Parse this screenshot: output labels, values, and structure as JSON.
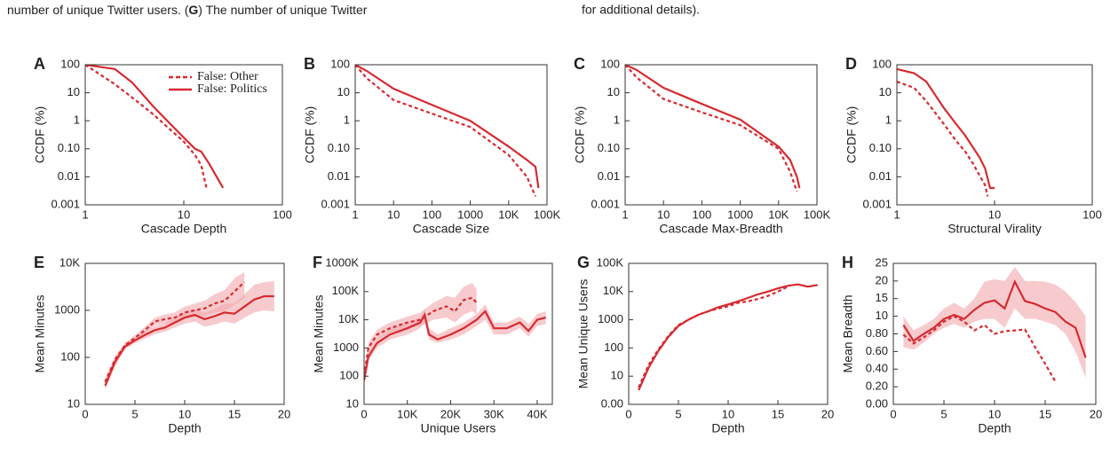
{
  "caption": {
    "left": [
      "number of unique Twitter users. (",
      "G",
      ") The number of unique Twitter"
    ],
    "right": "for additional details)."
  },
  "chart_data": [
    {
      "type": "line",
      "panel": "A",
      "xlabel": "Cascade Depth",
      "ylabel": "CCDF (%)",
      "xscale": "log",
      "yscale": "log",
      "xlim": [
        1,
        100
      ],
      "xticks": [
        1,
        10,
        100
      ],
      "ylim": [
        0.001,
        100
      ],
      "yticks": [
        0.001,
        0.01,
        {
          "value": 0.1,
          "label": "0.10"
        },
        1,
        10,
        100
      ],
      "legend": "upper right",
      "series": [
        {
          "name": "False: Other",
          "color": "#d62a30",
          "linestyle": "dashed",
          "x": [
            1,
            2,
            3,
            5,
            8,
            10,
            13,
            15,
            17
          ],
          "values": [
            100,
            20,
            6.7,
            1.6,
            0.36,
            0.18,
            0.06,
            0.026,
            0.004
          ]
        },
        {
          "name": "False: Politics",
          "color": "#d62a30",
          "linestyle": "solid",
          "x": [
            1,
            2,
            3,
            5,
            10,
            13,
            15,
            18,
            25
          ],
          "values": [
            100,
            70,
            23,
            3,
            0.25,
            0.1,
            0.08,
            0.03,
            0.004
          ]
        }
      ]
    },
    {
      "type": "line",
      "panel": "B",
      "xlabel": "Cascade Size",
      "ylabel": "CCDF (%)",
      "xscale": "log",
      "yscale": "log",
      "xlim": [
        1,
        100000
      ],
      "xticks": [
        1,
        10,
        100,
        1000,
        {
          "value": 10000,
          "label": "10K"
        },
        {
          "value": 100000,
          "label": "100K"
        }
      ],
      "ylim": [
        0.001,
        100
      ],
      "yticks": [
        0.001,
        0.01,
        {
          "value": 0.1,
          "label": "0.10"
        },
        1,
        10,
        100
      ],
      "series": [
        {
          "color": "#d62a30",
          "linestyle": "dashed",
          "x": [
            1,
            2,
            10,
            100,
            1000,
            10000,
            30000,
            50000
          ],
          "values": [
            100,
            33,
            5.5,
            1.8,
            0.6,
            0.06,
            0.01,
            0.002
          ]
        },
        {
          "color": "#d62a30",
          "linestyle": "solid",
          "x": [
            1,
            2,
            10,
            100,
            1000,
            10000,
            30000,
            50000,
            60000
          ],
          "values": [
            100,
            60,
            14,
            3.7,
            1,
            0.12,
            0.04,
            0.023,
            0.004
          ]
        }
      ]
    },
    {
      "type": "line",
      "panel": "C",
      "xlabel": "Cascade Max-Breadth",
      "ylabel": "CCDF (%)",
      "xscale": "log",
      "yscale": "log",
      "xlim": [
        1,
        100000
      ],
      "xticks": [
        1,
        10,
        100,
        1000,
        {
          "value": 10000,
          "label": "10K"
        },
        {
          "value": 100000,
          "label": "100K"
        }
      ],
      "ylim": [
        0.001,
        100
      ],
      "yticks": [
        0.001,
        0.01,
        {
          "value": 0.1,
          "label": "0.10"
        },
        1,
        10,
        100
      ],
      "series": [
        {
          "color": "#d62a30",
          "linestyle": "dashed",
          "x": [
            1,
            2,
            10,
            100,
            1000,
            10000,
            20000,
            30000
          ],
          "values": [
            100,
            35,
            6,
            2,
            0.7,
            0.1,
            0.015,
            0.003
          ]
        },
        {
          "color": "#d62a30",
          "linestyle": "solid",
          "x": [
            1,
            2,
            10,
            100,
            1000,
            10000,
            20000,
            30000,
            35000
          ],
          "values": [
            100,
            65,
            15,
            4,
            1.1,
            0.12,
            0.04,
            0.01,
            0.004
          ]
        }
      ]
    },
    {
      "type": "line",
      "panel": "D",
      "xlabel": "Structural Virality",
      "ylabel": "CCDF (%)",
      "xscale": "log",
      "yscale": "log",
      "xlim": [
        1,
        100
      ],
      "xticks": [
        1,
        10,
        100
      ],
      "ylim": [
        0.001,
        100
      ],
      "yticks": [
        0.001,
        0.01,
        {
          "value": 0.1,
          "label": "0.10"
        },
        1,
        10,
        100
      ],
      "series": [
        {
          "color": "#d62a30",
          "linestyle": "dashed",
          "x": [
            1,
            1.5,
            2,
            3,
            4,
            5,
            6,
            8,
            8.5
          ],
          "values": [
            25,
            15,
            5,
            0.8,
            0.2,
            0.08,
            0.03,
            0.005,
            0.002
          ]
        },
        {
          "color": "#d62a30",
          "linestyle": "solid",
          "x": [
            1,
            1.5,
            2,
            3,
            4,
            5,
            7,
            8,
            9,
            10
          ],
          "values": [
            70,
            50,
            25,
            3,
            0.8,
            0.3,
            0.05,
            0.02,
            0.004,
            0.004
          ]
        }
      ]
    },
    {
      "type": "line",
      "panel": "E",
      "xlabel": "Depth",
      "ylabel": "Mean Minutes",
      "xscale": "linear",
      "yscale": "log",
      "xlim": [
        0,
        20
      ],
      "xticks": [
        0,
        5,
        10,
        15,
        20
      ],
      "ylim": [
        10,
        10000
      ],
      "yticks": [
        10,
        100,
        1000,
        {
          "value": 10000,
          "label": "10K"
        }
      ],
      "band_color": "#f2a9ae",
      "series": [
        {
          "color": "#d62a30",
          "linestyle": "dashed",
          "x": [
            2,
            3,
            4,
            5,
            6,
            7,
            8,
            9,
            10,
            11,
            12,
            13,
            14,
            15,
            16
          ],
          "values": [
            30,
            90,
            180,
            260,
            380,
            580,
            650,
            700,
            900,
            1000,
            1100,
            1400,
            1600,
            2500,
            4000
          ],
          "lower": [
            25,
            75,
            160,
            230,
            320,
            480,
            520,
            540,
            680,
            720,
            760,
            900,
            950,
            1300,
            1800
          ],
          "upper": [
            36,
            105,
            205,
            295,
            450,
            700,
            820,
            900,
            1200,
            1400,
            1600,
            2200,
            2700,
            4800,
            6500
          ]
        },
        {
          "color": "#d62a30",
          "linestyle": "solid",
          "x": [
            2,
            3,
            4,
            5,
            6,
            7,
            8,
            9,
            10,
            11,
            12,
            13,
            14,
            15,
            16,
            17,
            18,
            19
          ],
          "values": [
            25,
            80,
            170,
            230,
            300,
            380,
            430,
            550,
            700,
            800,
            650,
            750,
            900,
            850,
            1200,
            1700,
            2000,
            2000
          ],
          "lower": [
            20,
            65,
            150,
            200,
            250,
            310,
            350,
            430,
            520,
            580,
            450,
            500,
            580,
            520,
            700,
            900,
            1000,
            950
          ],
          "upper": [
            32,
            100,
            195,
            265,
            360,
            460,
            530,
            700,
            900,
            1050,
            900,
            1100,
            1400,
            1400,
            2200,
            3500,
            4000,
            4200
          ]
        }
      ]
    },
    {
      "type": "line",
      "panel": "F",
      "xlabel": "Unique Users",
      "ylabel": "Mean Minutes",
      "xscale": "linear",
      "yscale": "log",
      "xlim": [
        0,
        43500
      ],
      "xticks": [
        0,
        {
          "value": 10000,
          "label": "10K"
        },
        {
          "value": 20000,
          "label": "20K"
        },
        {
          "value": 30000,
          "label": "30K"
        },
        {
          "value": 40000,
          "label": "40K"
        }
      ],
      "ylim": [
        10,
        1000000
      ],
      "yticks": [
        10,
        100,
        1000,
        {
          "value": 10000,
          "label": "10K"
        },
        {
          "value": 100000,
          "label": "100K"
        },
        {
          "value": 1000000,
          "label": "1000K"
        }
      ],
      "band_color": "#f2a9ae",
      "series": [
        {
          "color": "#d62a30",
          "linestyle": "dashed",
          "x": [
            0,
            1000,
            3000,
            6000,
            10000,
            13000,
            16000,
            19000,
            21000,
            23000,
            25000,
            26000
          ],
          "values": [
            100,
            1000,
            3000,
            5000,
            8000,
            10000,
            20000,
            30000,
            20000,
            50000,
            60000,
            40000
          ],
          "lower": [
            70,
            700,
            2000,
            3500,
            5000,
            6000,
            10000,
            12000,
            8000,
            15000,
            20000,
            15000
          ],
          "upper": [
            150,
            1500,
            4500,
            8000,
            13000,
            18000,
            40000,
            70000,
            60000,
            150000,
            200000,
            120000
          ]
        },
        {
          "color": "#d62a30",
          "linestyle": "solid",
          "x": [
            0,
            1000,
            3000,
            6000,
            10000,
            13000,
            14000,
            15000,
            17000,
            20000,
            23000,
            26000,
            28000,
            30000,
            33000,
            36000,
            38000,
            40000,
            42000
          ],
          "values": [
            70,
            500,
            1500,
            3000,
            5000,
            8000,
            15000,
            3000,
            2000,
            3000,
            5000,
            10000,
            20000,
            5000,
            5000,
            8000,
            4000,
            10000,
            12000
          ],
          "lower": [
            50,
            350,
            1000,
            2000,
            3000,
            5000,
            8000,
            2000,
            1500,
            2000,
            3000,
            6000,
            10000,
            3000,
            3000,
            5000,
            2500,
            6000,
            7000
          ],
          "upper": [
            100,
            700,
            2200,
            4500,
            8000,
            12000,
            25000,
            5000,
            3000,
            5000,
            8000,
            16000,
            35000,
            8000,
            8000,
            13000,
            7000,
            16000,
            20000
          ]
        }
      ]
    },
    {
      "type": "line",
      "panel": "G",
      "xlabel": "Depth",
      "ylabel": "Mean Unique Users",
      "xscale": "linear",
      "yscale": "segmented-log",
      "xlim": [
        0,
        20
      ],
      "xticks": [
        0,
        5,
        10,
        15,
        20
      ],
      "ylim": [
        0,
        100000
      ],
      "yticks": [
        {
          "value": 0,
          "label": "0.00"
        },
        10,
        100,
        1000,
        {
          "value": 10000,
          "label": "10K"
        },
        {
          "value": 100000,
          "label": "100K"
        }
      ],
      "series": [
        {
          "color": "#d62a30",
          "linestyle": "dashed",
          "x": [
            1,
            2,
            3,
            4,
            5,
            6,
            7,
            8,
            9,
            10,
            11,
            12,
            13,
            14,
            15,
            16
          ],
          "values": [
            6,
            25,
            90,
            270,
            650,
            1000,
            1500,
            2000,
            2500,
            3000,
            4000,
            4500,
            5500,
            7000,
            10000,
            15000
          ]
        },
        {
          "color": "#d62a30",
          "linestyle": "solid",
          "x": [
            1,
            2,
            3,
            4,
            5,
            6,
            7,
            8,
            9,
            10,
            11,
            12,
            13,
            14,
            15,
            16,
            17,
            18,
            19
          ],
          "values": [
            5,
            20,
            80,
            250,
            600,
            1000,
            1500,
            2000,
            2800,
            3500,
            4500,
            6000,
            8000,
            10000,
            13000,
            16000,
            18000,
            15000,
            17000
          ]
        }
      ]
    },
    {
      "type": "line",
      "panel": "H",
      "xlabel": "Depth",
      "ylabel": "Mean Breadth",
      "xscale": "linear",
      "yscale": "segmented",
      "xlim": [
        0,
        20
      ],
      "xticks": [
        0,
        5,
        10,
        15,
        20
      ],
      "ylim": [
        0,
        25
      ],
      "yticks": [
        {
          "value": 0,
          "label": "0.00"
        },
        {
          "value": 0.2,
          "label": "0.20"
        },
        {
          "value": 0.4,
          "label": "0.40"
        },
        {
          "value": 0.6,
          "label": "0.60"
        },
        {
          "value": 0.8,
          "label": "0.80"
        },
        10,
        15,
        20,
        25
      ],
      "band_color": "#f2a9ae",
      "series": [
        {
          "color": "#d62a30",
          "linestyle": "dashed",
          "x": [
            1,
            2,
            3,
            4,
            5,
            6,
            7,
            8,
            9,
            10,
            11,
            12,
            13,
            14,
            15,
            16
          ],
          "values": [
            0.79,
            0.69,
            0.76,
            2.6,
            7.2,
            10,
            7.2,
            2.6,
            5.4,
            0.8,
            2.2,
            2.6,
            3.1,
            0.65,
            0.46,
            0.26
          ]
        },
        {
          "color": "#d62a30",
          "linestyle": "solid",
          "x": [
            1,
            2,
            3,
            4,
            5,
            6,
            7,
            8,
            9,
            10,
            11,
            12,
            13,
            14,
            15,
            16,
            17,
            18,
            19
          ],
          "values": [
            5.4,
            0.72,
            0.8,
            4.0,
            8.6,
            10.4,
            8.6,
            11.8,
            13.8,
            14.5,
            12.2,
            19.8,
            14.3,
            13.5,
            12.2,
            11.2,
            7.2,
            4.0,
            0.53
          ],
          "lower": [
            0.65,
            0.62,
            0.7,
            0.8,
            4,
            6,
            4,
            7.2,
            8.6,
            8.6,
            4,
            12.2,
            8.6,
            8.6,
            7.2,
            5.4,
            0.8,
            0.6,
            0.3
          ],
          "upper": [
            10,
            2.6,
            5.4,
            8.6,
            12.2,
            13.8,
            12.2,
            15,
            19.8,
            20.5,
            20,
            24,
            20,
            20,
            19.8,
            19,
            17,
            14,
            10
          ]
        }
      ]
    }
  ]
}
